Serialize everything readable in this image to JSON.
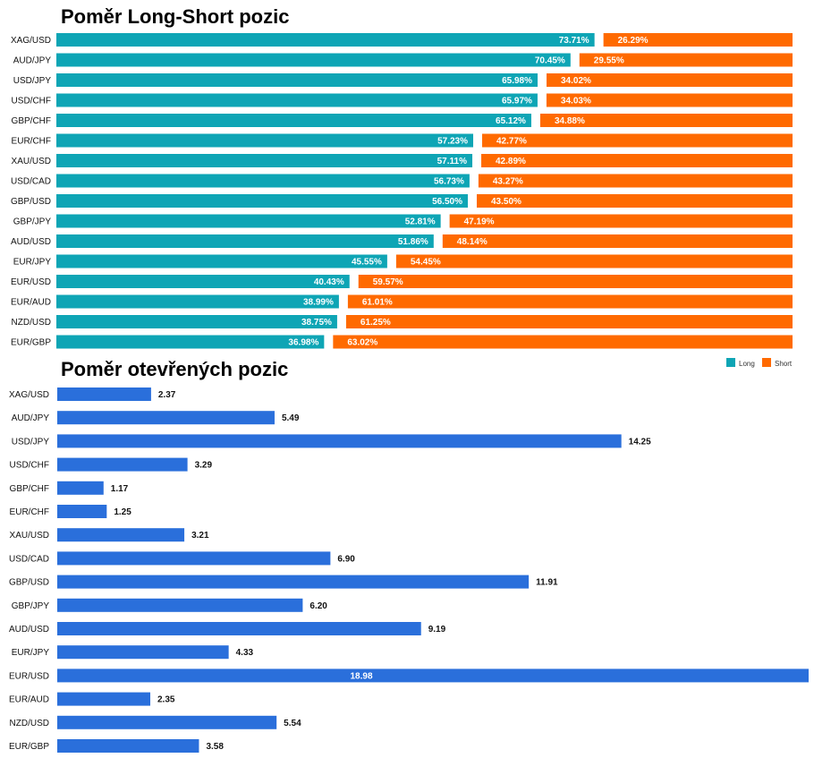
{
  "chart_data": [
    {
      "type": "bar",
      "title": "Poměr Long-Short pozic",
      "categories": [
        "XAG/USD",
        "AUD/JPY",
        "USD/JPY",
        "USD/CHF",
        "GBP/CHF",
        "EUR/CHF",
        "XAU/USD",
        "USD/CAD",
        "GBP/USD",
        "GBP/JPY",
        "AUD/USD",
        "EUR/JPY",
        "EUR/USD",
        "EUR/AUD",
        "NZD/USD",
        "EUR/GBP"
      ],
      "series": [
        {
          "name": "Long",
          "color": "#0ea5b5",
          "values": [
            73.71,
            70.45,
            65.98,
            65.97,
            65.12,
            57.23,
            57.11,
            56.73,
            56.5,
            52.81,
            51.86,
            45.55,
            40.43,
            38.99,
            38.75,
            36.98
          ],
          "labels": [
            "73.71%",
            "70.45%",
            "65.98%",
            "65.97%",
            "65.12%",
            "57.23%",
            "57.11%",
            "56.73%",
            "56.50%",
            "52.81%",
            "51.86%",
            "45.55%",
            "40.43%",
            "38.99%",
            "38.75%",
            "36.98%"
          ]
        },
        {
          "name": "Short",
          "color": "#ff6a00",
          "values": [
            26.29,
            29.55,
            34.02,
            34.03,
            34.88,
            42.77,
            42.89,
            43.27,
            43.5,
            47.19,
            48.14,
            54.45,
            59.57,
            61.01,
            61.25,
            63.02
          ],
          "labels": [
            "26.29%",
            "29.55%",
            "34.02%",
            "34.03%",
            "34.88%",
            "42.77%",
            "42.89%",
            "43.27%",
            "43.50%",
            "47.19%",
            "48.14%",
            "54.45%",
            "59.57%",
            "61.01%",
            "61.25%",
            "63.02%"
          ]
        }
      ],
      "stacked": true,
      "xlim": [
        0,
        100
      ],
      "legend": "bottom-right",
      "grid": false
    },
    {
      "type": "bar",
      "title": "Poměr otevřených pozic",
      "categories": [
        "XAG/USD",
        "AUD/JPY",
        "USD/JPY",
        "USD/CHF",
        "GBP/CHF",
        "EUR/CHF",
        "XAU/USD",
        "USD/CAD",
        "GBP/USD",
        "GBP/JPY",
        "AUD/USD",
        "EUR/JPY",
        "EUR/USD",
        "EUR/AUD",
        "NZD/USD",
        "EUR/GBP"
      ],
      "values": [
        2.37,
        5.49,
        14.25,
        3.29,
        1.17,
        1.25,
        3.21,
        6.9,
        11.91,
        6.2,
        9.19,
        4.33,
        18.98,
        2.35,
        5.54,
        3.58
      ],
      "labels": [
        "2.37",
        "5.49",
        "14.25",
        "3.29",
        "1.17",
        "1.25",
        "3.21",
        "6.90",
        "11.91",
        "6.20",
        "9.19",
        "4.33",
        "18.98",
        "2.35",
        "5.54",
        "3.58"
      ],
      "color": "#2a6fdb",
      "xlim": [
        0,
        18.98
      ],
      "grid": false
    }
  ]
}
